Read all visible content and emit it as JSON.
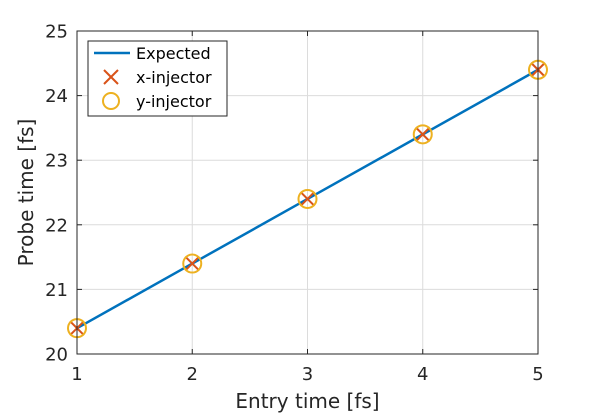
{
  "chart_data": {
    "type": "line",
    "xlabel": "Entry time [fs]",
    "ylabel": "Probe time [fs]",
    "xlim": [
      1,
      5
    ],
    "ylim": [
      20,
      25
    ],
    "xticks": [
      "1",
      "2",
      "3",
      "4",
      "5"
    ],
    "yticks": [
      "20",
      "21",
      "22",
      "23",
      "24",
      "25"
    ],
    "grid": true,
    "legend_position": "top-left",
    "series": [
      {
        "name": "Expected",
        "style": "line",
        "color": "#0072BD",
        "x": [
          1,
          2,
          3,
          4,
          5
        ],
        "y": [
          20.4,
          21.4,
          22.4,
          23.4,
          24.4
        ]
      },
      {
        "name": "x-injector",
        "style": "x-marker",
        "color": "#D95319",
        "x": [
          1,
          2,
          3,
          4,
          5
        ],
        "y": [
          20.4,
          21.4,
          22.4,
          23.4,
          24.4
        ]
      },
      {
        "name": "y-injector",
        "style": "circle-marker",
        "color": "#EDB120",
        "x": [
          1,
          2,
          3,
          4,
          5
        ],
        "y": [
          20.4,
          21.4,
          22.4,
          23.4,
          24.4
        ]
      }
    ]
  }
}
